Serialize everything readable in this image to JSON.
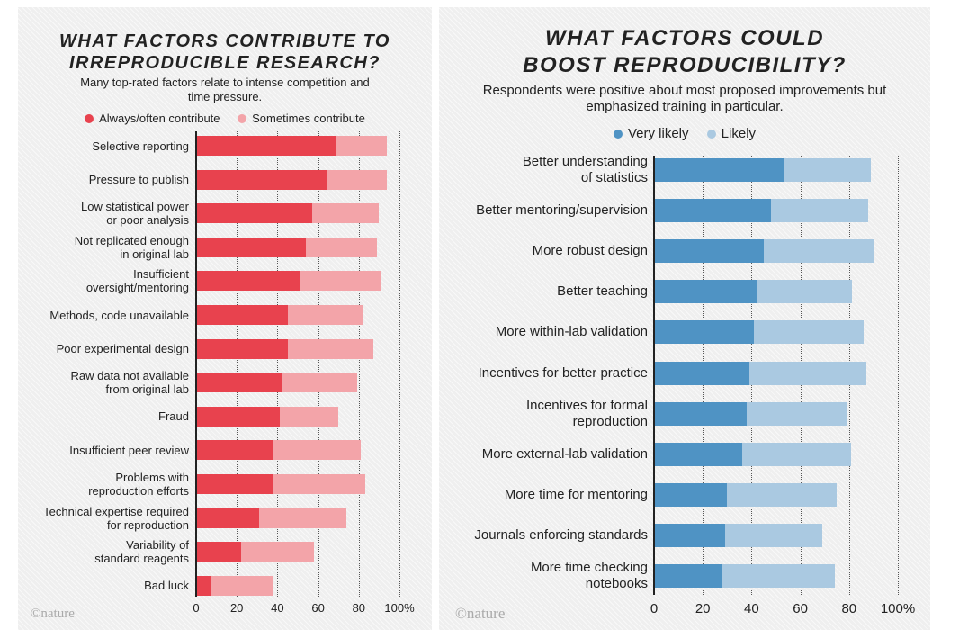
{
  "credit": "©nature",
  "chart_data": [
    {
      "type": "bar",
      "orientation": "horizontal",
      "stacked": true,
      "title": "WHAT FACTORS CONTRIBUTE TO IRREPRODUCIBLE RESEARCH?",
      "subtitle": "Many top-rated factors relate to intense competition and time pressure.",
      "xlim": [
        0,
        100
      ],
      "xticks": [
        "0",
        "20",
        "40",
        "60",
        "80",
        "100%"
      ],
      "tick_values": [
        0,
        20,
        40,
        60,
        80,
        100
      ],
      "grid": true,
      "legend_position": "top",
      "categories": [
        "Selective reporting",
        "Pressure to publish",
        "Low statistical power\nor poor analysis",
        "Not replicated enough\nin original lab",
        "Insufficient\noversight/mentoring",
        "Methods, code unavailable",
        "Poor experimental design",
        "Raw data not available\nfrom original lab",
        "Fraud",
        "Insufficient peer review",
        "Problems with\nreproduction efforts",
        "Technical expertise required\nfor reproduction",
        "Variability of\nstandard reagents",
        "Bad luck"
      ],
      "series": [
        {
          "name": "Always/often contribute",
          "color": "#e8424e",
          "values": [
            69,
            64,
            57,
            54,
            51,
            45,
            45,
            42,
            41,
            38,
            38,
            31,
            22,
            7
          ]
        },
        {
          "name": "Sometimes contribute",
          "color": "#f3a4a9",
          "values": [
            25,
            30,
            33,
            35,
            40,
            37,
            42,
            37,
            29,
            43,
            45,
            43,
            36,
            31
          ]
        }
      ]
    },
    {
      "type": "bar",
      "orientation": "horizontal",
      "stacked": true,
      "title": "WHAT FACTORS COULD BOOST REPRODUCIBILITY?",
      "subtitle": "Respondents were positive about most proposed improvements but emphasized training in particular.",
      "xlim": [
        0,
        100
      ],
      "xticks": [
        "0",
        "20",
        "40",
        "60",
        "80",
        "100%"
      ],
      "tick_values": [
        0,
        20,
        40,
        60,
        80,
        100
      ],
      "grid": true,
      "legend_position": "top",
      "categories": [
        "Better understanding\nof statistics",
        "Better mentoring/supervision",
        "More robust design",
        "Better teaching",
        "More within-lab validation",
        "Incentives for better practice",
        "Incentives for formal\nreproduction",
        "More external-lab validation",
        "More time for mentoring",
        "Journals enforcing standards",
        "More time checking\nnotebooks"
      ],
      "series": [
        {
          "name": "Very likely",
          "color": "#4f93c4",
          "values": [
            53,
            48,
            45,
            42,
            41,
            39,
            38,
            36,
            30,
            29,
            28
          ]
        },
        {
          "name": "Likely",
          "color": "#aac9e1",
          "values": [
            36,
            40,
            45,
            39,
            45,
            48,
            41,
            45,
            45,
            40,
            46
          ]
        }
      ]
    }
  ]
}
